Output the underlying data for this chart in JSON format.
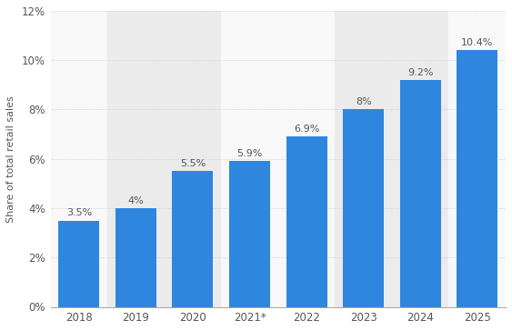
{
  "categories": [
    "2018",
    "2019",
    "2020",
    "2021*",
    "2022",
    "2023",
    "2024",
    "2025"
  ],
  "values": [
    3.5,
    4.0,
    5.5,
    5.9,
    6.9,
    8.0,
    9.2,
    10.4
  ],
  "labels": [
    "3.5%",
    "4%",
    "5.5%",
    "5.9%",
    "6.9%",
    "8%",
    "9.2%",
    "10.4%"
  ],
  "bar_color": "#2e86de",
  "ylabel": "Share of total retail sales",
  "ylim": [
    0,
    12
  ],
  "yticks": [
    0,
    2,
    4,
    6,
    8,
    10,
    12
  ],
  "ytick_labels": [
    "0%",
    "2%",
    "4%",
    "6%",
    "8%",
    "10%",
    "12%"
  ],
  "background_color": "#ffffff",
  "plot_bg_color": "#f8f8f8",
  "grid_color": "#cccccc",
  "label_fontsize": 8,
  "axis_fontsize": 8,
  "tick_fontsize": 8.5,
  "bar_width": 0.72,
  "col_bg_shaded": "#ebebeb",
  "col_bg_clear": "#f8f8f8",
  "stripe_pattern": [
    0,
    1,
    0,
    1,
    0,
    1,
    0,
    1
  ]
}
